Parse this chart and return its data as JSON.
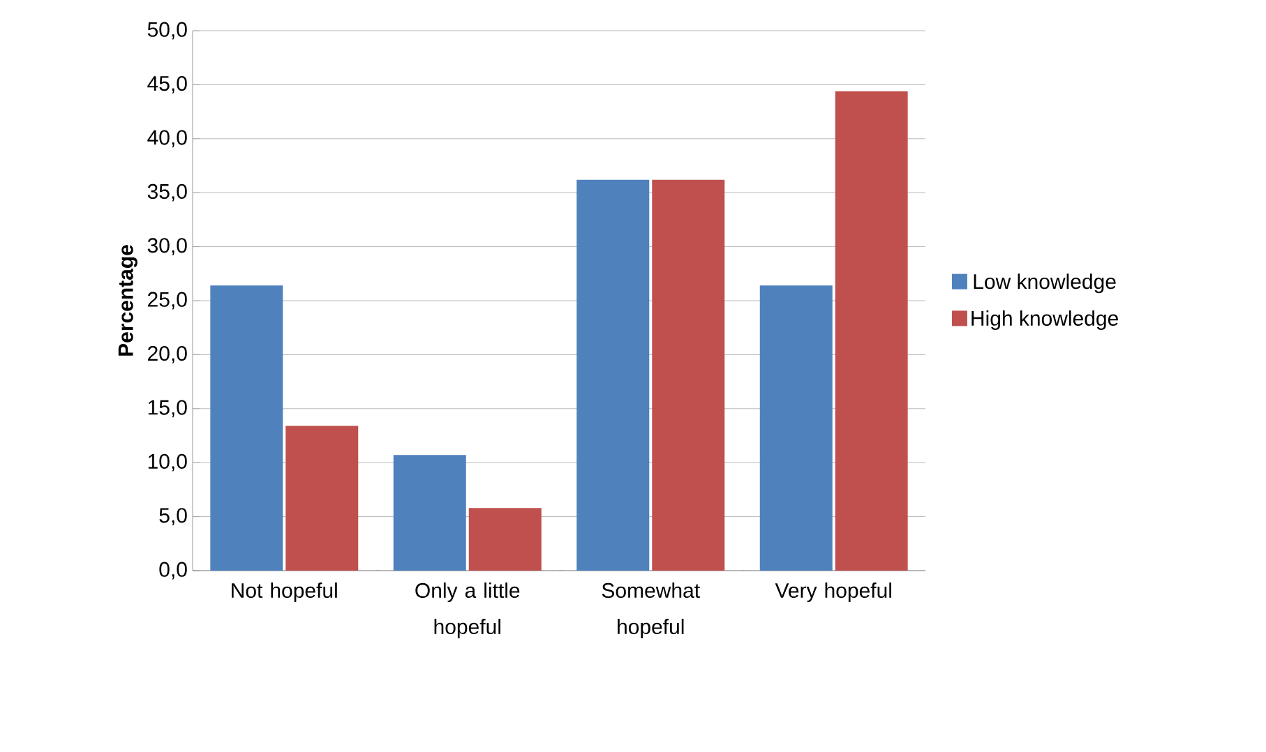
{
  "chart_data": {
    "type": "bar",
    "ylabel": "Percentage",
    "categories": [
      "Not hopeful",
      "Only a little hopeful",
      "Somewhat hopeful",
      "Very hopeful"
    ],
    "series": [
      {
        "name": "Low knowledge",
        "color": "#4f81bd",
        "values": [
          26.4,
          10.7,
          36.2,
          26.4
        ]
      },
      {
        "name": "High knowledge",
        "color": "#c0504d",
        "values": [
          13.4,
          5.8,
          36.2,
          44.4
        ]
      }
    ],
    "ylim": [
      0,
      50
    ],
    "yticks": [
      {
        "value": 0,
        "label": "0,0"
      },
      {
        "value": 5,
        "label": "5,0"
      },
      {
        "value": 10,
        "label": "10,0"
      },
      {
        "value": 15,
        "label": "15,0"
      },
      {
        "value": 20,
        "label": "20,0"
      },
      {
        "value": 25,
        "label": "25,0"
      },
      {
        "value": 30,
        "label": "30,0"
      },
      {
        "value": 35,
        "label": "35,0"
      },
      {
        "value": 40,
        "label": "40,0"
      },
      {
        "value": 45,
        "label": "45,0"
      },
      {
        "value": 50,
        "label": "50,0"
      }
    ],
    "grid": "y",
    "legend": "right"
  }
}
